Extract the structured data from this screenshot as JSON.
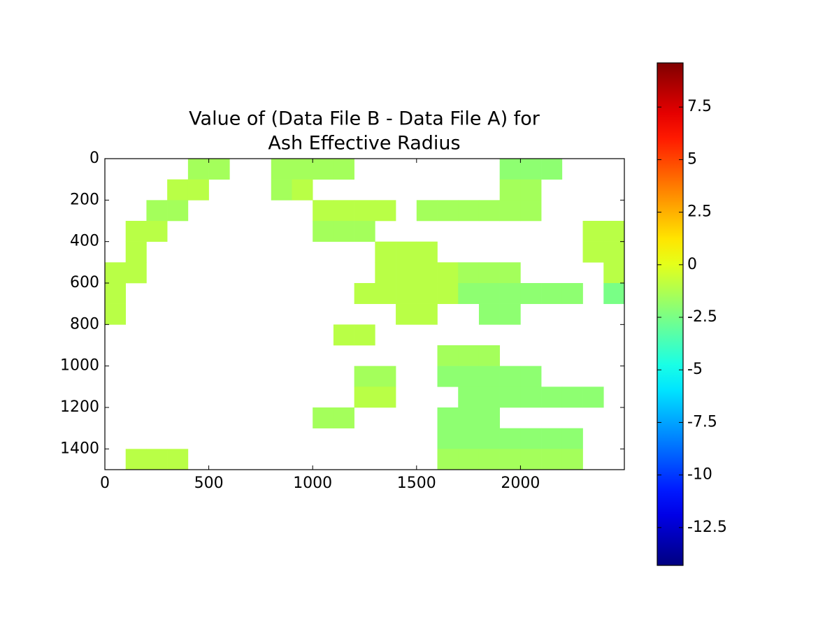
{
  "chart_data": {
    "type": "heatmap",
    "title": [
      "Value of (Data File B - Data File A) for",
      "Ash Effective Radius"
    ],
    "xlim": [
      0,
      2500
    ],
    "ylim": [
      1500,
      0
    ],
    "xticks": [
      0,
      500,
      1000,
      1500,
      2000
    ],
    "yticks": [
      0,
      200,
      400,
      600,
      800,
      1000,
      1200,
      1400
    ],
    "colormap": "jet",
    "clim": [
      -14.3,
      9.6
    ],
    "cticks": [
      7.5,
      5,
      2.5,
      0,
      -2.5,
      -5,
      -7.5,
      -10,
      -12.5
    ],
    "z": [
      [
        null,
        null,
        null,
        null,
        -1.5,
        -1.5,
        null,
        null,
        -1.5,
        -1.5,
        -1.5,
        -1.5,
        null,
        null,
        null,
        null,
        null,
        null,
        null,
        -2,
        -2,
        -2,
        null,
        null,
        null
      ],
      [
        null,
        null,
        null,
        -1,
        -1,
        null,
        null,
        null,
        -1.5,
        -1,
        null,
        null,
        null,
        null,
        null,
        null,
        null,
        null,
        null,
        -1.5,
        -1.5,
        null,
        null,
        null,
        null
      ],
      [
        null,
        null,
        -1.5,
        -1.5,
        null,
        null,
        null,
        null,
        null,
        null,
        -1,
        -1,
        -1,
        -1,
        null,
        -1.5,
        -1.5,
        -1.5,
        -1.5,
        -1.5,
        -1.5,
        null,
        null,
        null,
        null
      ],
      [
        null,
        -1,
        -1,
        null,
        null,
        null,
        null,
        null,
        null,
        null,
        -1.5,
        -1.5,
        -1.5,
        null,
        null,
        null,
        null,
        null,
        null,
        null,
        null,
        null,
        null,
        -1,
        -1
      ],
      [
        null,
        -1,
        null,
        null,
        null,
        null,
        null,
        null,
        null,
        null,
        null,
        null,
        null,
        -1,
        -1,
        -1,
        null,
        null,
        null,
        null,
        null,
        null,
        null,
        -1,
        -1
      ],
      [
        -1,
        -1,
        null,
        null,
        null,
        null,
        null,
        null,
        null,
        null,
        null,
        null,
        null,
        -1,
        -1,
        -1,
        -1,
        -1.5,
        -1.5,
        -1.5,
        null,
        null,
        null,
        null,
        -1
      ],
      [
        -1,
        null,
        null,
        null,
        null,
        null,
        null,
        null,
        null,
        null,
        null,
        null,
        -1,
        -1,
        -1,
        -1,
        -1,
        -2,
        -2,
        -2,
        -2,
        -2,
        -2,
        null,
        -2.5
      ],
      [
        -1,
        null,
        null,
        null,
        null,
        null,
        null,
        null,
        null,
        null,
        null,
        null,
        null,
        null,
        -1,
        -1,
        null,
        null,
        -2,
        -2,
        null,
        null,
        null,
        null,
        null
      ],
      [
        null,
        null,
        null,
        null,
        null,
        null,
        null,
        null,
        null,
        null,
        null,
        -1,
        -1,
        null,
        null,
        null,
        null,
        null,
        null,
        null,
        null,
        null,
        null,
        null,
        null
      ],
      [
        null,
        null,
        null,
        null,
        null,
        null,
        null,
        null,
        null,
        null,
        null,
        null,
        null,
        null,
        null,
        null,
        -1.5,
        -1.5,
        -1.5,
        null,
        null,
        null,
        null,
        null,
        null
      ],
      [
        null,
        null,
        null,
        null,
        null,
        null,
        null,
        null,
        null,
        null,
        null,
        null,
        -1.5,
        -1.5,
        null,
        null,
        -2,
        -2,
        -2,
        -2,
        -2,
        null,
        null,
        null,
        null
      ],
      [
        null,
        null,
        null,
        null,
        null,
        null,
        null,
        null,
        null,
        null,
        null,
        null,
        -1,
        -1,
        null,
        null,
        null,
        -2,
        -2,
        -2,
        -2,
        -2,
        -2,
        -2,
        null
      ],
      [
        null,
        null,
        null,
        null,
        null,
        null,
        null,
        null,
        null,
        null,
        -1.5,
        -1.5,
        null,
        null,
        null,
        null,
        -2,
        -2,
        -2,
        null,
        null,
        null,
        null,
        null,
        null
      ],
      [
        null,
        null,
        null,
        null,
        null,
        null,
        null,
        null,
        null,
        null,
        null,
        null,
        null,
        null,
        null,
        null,
        -2,
        -2,
        -2,
        -2,
        -2,
        -2,
        -2,
        null,
        null
      ],
      [
        null,
        -1,
        -1,
        -1,
        null,
        null,
        null,
        null,
        null,
        null,
        null,
        null,
        null,
        null,
        null,
        null,
        -1.5,
        -1.5,
        -1.5,
        -1.5,
        -1.5,
        -1.5,
        -1.5,
        null,
        null
      ]
    ]
  }
}
